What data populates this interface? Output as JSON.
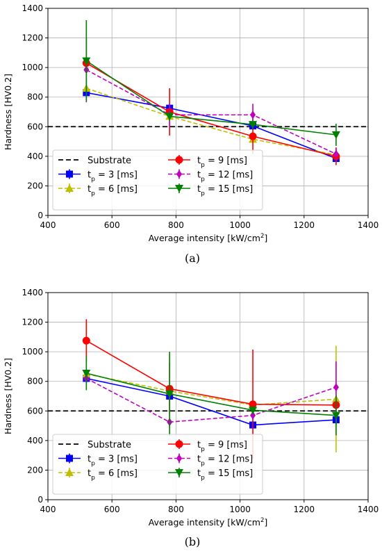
{
  "chart_data": [
    {
      "type": "line",
      "panel": "(a)",
      "xlabel": "Average intensity [kW/cm²]",
      "xlabel_base": "Average intensity [kW/cm",
      "xlabel_sup": "2",
      "xlabel_end": "]",
      "ylabel": "Hardness [HV0.2]",
      "xlim": [
        400,
        1400
      ],
      "ylim": [
        0,
        1400
      ],
      "xticks": [
        "400",
        "600",
        "800",
        "1000",
        "1200",
        "1400"
      ],
      "yticks": [
        "0",
        "200",
        "400",
        "600",
        "800",
        "1000",
        "1200",
        "1400"
      ],
      "grid": true,
      "legend_placement": "lower-left",
      "substrate": {
        "name": "Substrate",
        "y": 600,
        "color": "#000000"
      },
      "series": [
        {
          "name": "t_p = 3 [ms]",
          "label_sub": "p",
          "label_rest": " = 3 [ms]",
          "color": "#0000ff",
          "dash": "solid",
          "marker": "square",
          "x": [
            520,
            780,
            1040,
            1300
          ],
          "y": [
            830,
            725,
            605,
            385
          ],
          "err": [
            20,
            25,
            25,
            20
          ]
        },
        {
          "name": "t_p = 6 [ms]",
          "label_sub": "p",
          "label_rest": " = 6 [ms]",
          "color": "#bfbf00",
          "dash": "dashed",
          "marker": "triangle-up",
          "x": [
            520,
            780,
            1040,
            1300
          ],
          "y": [
            860,
            670,
            515,
            410
          ],
          "err": [
            15,
            20,
            20,
            15
          ]
        },
        {
          "name": "t_p = 9 [ms]",
          "label_sub": "p",
          "label_rest": " = 9 [ms]",
          "color": "#ff0000",
          "dash": "solid",
          "marker": "circle",
          "x": [
            520,
            780,
            1040,
            1300
          ],
          "y": [
            1030,
            700,
            535,
            400
          ],
          "err": [
            40,
            160,
            120,
            60
          ]
        },
        {
          "name": "t_p = 12 [ms]",
          "label_sub": "p",
          "label_rest": " = 12 [ms]",
          "color": "#bf00bf",
          "dash": "dashed",
          "marker": "diamond",
          "x": [
            520,
            780,
            1040,
            1300
          ],
          "y": [
            985,
            680,
            680,
            415
          ],
          "err": [
            220,
            80,
            75,
            40
          ]
        },
        {
          "name": "t_p = 15 [ms]",
          "label_sub": "p",
          "label_rest": " = 15 [ms]",
          "color": "#008000",
          "dash": "solid",
          "marker": "triangle-down",
          "x": [
            520,
            780,
            1040,
            1300
          ],
          "y": [
            1045,
            670,
            615,
            545
          ],
          "err": [
            275,
            30,
            30,
            75
          ]
        }
      ]
    },
    {
      "type": "line",
      "panel": "(b)",
      "xlabel": "Average intensity [kW/cm²]",
      "xlabel_base": "Average intensity [kW/cm",
      "xlabel_sup": "2",
      "xlabel_end": "]",
      "ylabel": "Hardness [HV0.2]",
      "xlim": [
        400,
        1400
      ],
      "ylim": [
        0,
        1400
      ],
      "xticks": [
        "400",
        "600",
        "800",
        "1000",
        "1200",
        "1400"
      ],
      "yticks": [
        "0",
        "200",
        "400",
        "600",
        "800",
        "1000",
        "1200",
        "1400"
      ],
      "grid": true,
      "legend_placement": "lower-left",
      "substrate": {
        "name": "Substrate",
        "y": 600,
        "color": "#000000"
      },
      "series": [
        {
          "name": "t_p = 3 [ms]",
          "label_sub": "p",
          "label_rest": " = 3 [ms]",
          "color": "#0000ff",
          "dash": "solid",
          "marker": "square",
          "x": [
            520,
            780,
            1040,
            1300
          ],
          "y": [
            820,
            700,
            505,
            540
          ],
          "err": [
            30,
            30,
            25,
            30
          ]
        },
        {
          "name": "t_p = 6 [ms]",
          "label_sub": "p",
          "label_rest": " = 6 [ms]",
          "color": "#bfbf00",
          "dash": "dashed",
          "marker": "triangle-up",
          "x": [
            520,
            780,
            1040,
            1300
          ],
          "y": [
            850,
            735,
            640,
            680
          ],
          "err": [
            20,
            250,
            30,
            360
          ]
        },
        {
          "name": "t_p = 9 [ms]",
          "label_sub": "p",
          "label_rest": " = 9 [ms]",
          "color": "#ff0000",
          "dash": "solid",
          "marker": "circle",
          "x": [
            520,
            780,
            1040,
            1300
          ],
          "y": [
            1075,
            750,
            645,
            640
          ],
          "err": [
            145,
            175,
            370,
            30
          ]
        },
        {
          "name": "t_p = 12 [ms]",
          "label_sub": "p",
          "label_rest": " = 12 [ms]",
          "color": "#bf00bf",
          "dash": "dashed",
          "marker": "diamond",
          "x": [
            520,
            780,
            1040,
            1300
          ],
          "y": [
            820,
            525,
            570,
            760
          ],
          "err": [
            30,
            30,
            30,
            175
          ]
        },
        {
          "name": "t_p = 15 [ms]",
          "label_sub": "p",
          "label_rest": " = 15 [ms]",
          "color": "#008000",
          "dash": "solid",
          "marker": "triangle-down",
          "x": [
            520,
            780,
            1040,
            1300
          ],
          "y": [
            855,
            715,
            605,
            570
          ],
          "err": [
            115,
            285,
            30,
            135
          ]
        }
      ]
    }
  ]
}
